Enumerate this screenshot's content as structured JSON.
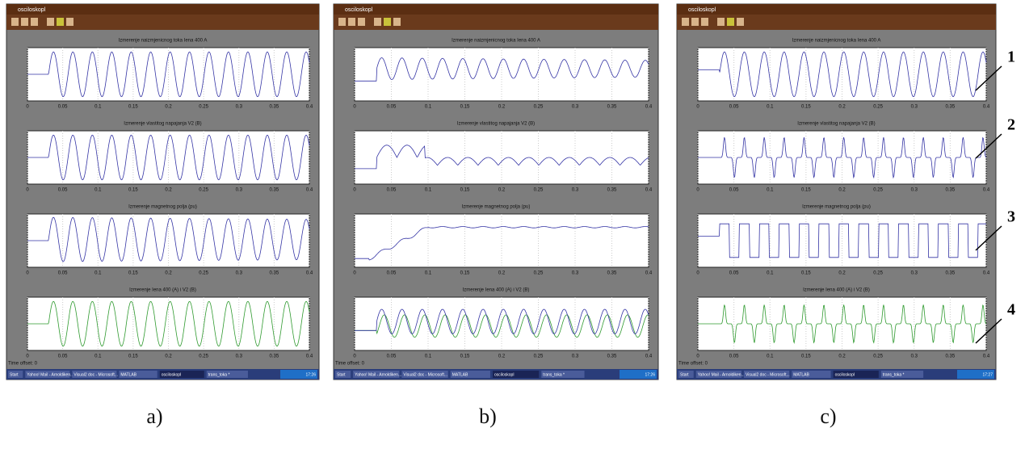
{
  "panels": [
    {
      "label": "a)",
      "window_title": "osciloskopl",
      "subplots": [
        {
          "title": "Izmerenje naizmjenicnog toka Iena 400 A"
        },
        {
          "title": "Izmerenje vlastitog napajanja V2 (B)"
        },
        {
          "title": "Izmerenje magnetnog polja (pu)"
        },
        {
          "title": "Izmerenje Iena 400 (A) i V2 (B)"
        }
      ],
      "xticks": [
        0,
        0.05,
        0.1,
        0.15,
        0.2,
        0.25,
        0.3,
        0.35,
        0.4
      ],
      "time_offset": "Time offset: 0",
      "taskbar": [
        "Start",
        "Yahoo! Mail - Arnoldiken...",
        "Visual2 doc - Microsoft...",
        "MATLAB",
        "osciloskopl",
        "trans_toka *"
      ],
      "clock": "17:26"
    },
    {
      "label": "b)",
      "window_title": "osciloskopl",
      "subplots": [
        {
          "title": "Izmerenje naizmjenicnog toka Iena 400 A"
        },
        {
          "title": "Izmerenje vlastitog napajanja V2 (B)"
        },
        {
          "title": "Izmerenje magnetnog polja (pu)"
        },
        {
          "title": "Izmerenje Iena 400 (A) i V2 (B)"
        }
      ],
      "xticks": [
        0,
        0.05,
        0.1,
        0.15,
        0.2,
        0.25,
        0.3,
        0.35,
        0.4
      ],
      "time_offset": "Time offset: 0",
      "taskbar": [
        "Start",
        "Yahoo! Mail - Arnoldiken...",
        "Visual2 doc - Microsoft...",
        "MATLAB",
        "osciloskopl",
        "trans_toka *"
      ],
      "clock": "17:26"
    },
    {
      "label": "c)",
      "window_title": "osciloskopl",
      "subplots": [
        {
          "title": "Izmerenje naizmjenicnog toka Iena 400 A"
        },
        {
          "title": "Izmerenje vlastitog napajanja V2 (B)"
        },
        {
          "title": "Izmerenje magnetnog polja (pu)"
        },
        {
          "title": "Izmerenje Iena 400 (A) i V2 (B)"
        }
      ],
      "xticks": [
        0,
        0.05,
        0.1,
        0.15,
        0.2,
        0.25,
        0.3,
        0.35,
        0.4
      ],
      "time_offset": "Time offset: 0",
      "taskbar": [
        "Start",
        "Yahoo! Mail - Arnoldiken...",
        "Visual2 doc - Microsoft...",
        "MATLAB",
        "osciloskopl",
        "trans_toka *"
      ],
      "clock": "17:27"
    }
  ],
  "callouts": [
    "1",
    "2",
    "3",
    "4"
  ]
}
